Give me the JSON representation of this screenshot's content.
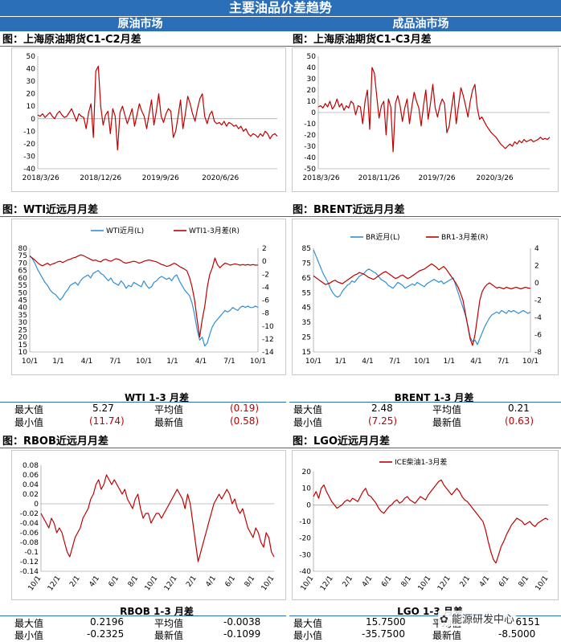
{
  "header": {
    "title": "主要油品价差趋势",
    "left_market": "原油市场",
    "right_market": "成品油市场"
  },
  "sections": {
    "sc_c1c2": "图：上海原油期货C1-C2月差",
    "sc_c1c3": "图：上海原油期货C1-C3月差",
    "wti": "图：WTI近远月月差",
    "brent": "图：BRENT近远月月差",
    "rbob": "图：RBOB近远月月差",
    "lgo": "图：LGO近远月月差"
  },
  "tables": {
    "wti": {
      "title": "WTI 1-3 月差",
      "max_label": "最大值",
      "max": "5.27",
      "avg_label": "平均值",
      "avg": "(0.19)",
      "min_label": "最小值",
      "min": "(11.74)",
      "latest_label": "最新值",
      "latest": "(0.58)"
    },
    "brent": {
      "title": "BRENT 1-3 月差",
      "max_label": "最大值",
      "max": "2.48",
      "avg_label": "平均值",
      "avg": "0.21",
      "min_label": "最小值",
      "min": "(7.25)",
      "latest_label": "最新值",
      "latest": "(0.63)"
    },
    "rbob": {
      "title": "RBOB 1-3 月差",
      "max_label": "最大值",
      "max": "0.2196",
      "avg_label": "平均值",
      "avg": "-0.0038",
      "min_label": "最小值",
      "min": "-0.2325",
      "latest_label": "最新值",
      "latest": "-0.1099"
    },
    "lgo": {
      "title": "LGO 1-3 月差",
      "max_label": "最大值",
      "max": "15.7500",
      "avg_label": "平均值",
      "avg": "0.6151",
      "min_label": "最小值",
      "min": "-35.7500",
      "latest_label": "最新值",
      "latest": "-8.5000"
    }
  },
  "watermark": "能源研发中心",
  "colors": {
    "band": "#2B6FB8",
    "series_red": "#C00000",
    "series_blue": "#2E8FD6"
  },
  "chart_data": [
    {
      "id": "sc_c1c2",
      "type": "line",
      "x_ticks": [
        "2018/3/26",
        "2018/12/26",
        "2019/9/26",
        "2020/6/26"
      ],
      "ylim": [
        -40,
        50
      ],
      "y_ticks": [
        50,
        40,
        30,
        20,
        10,
        0,
        -10,
        -20,
        -30,
        -40
      ],
      "series": [
        {
          "color": "#C00000",
          "values": [
            3,
            2,
            4,
            1,
            3,
            5,
            2,
            0,
            4,
            6,
            3,
            1,
            2,
            5,
            8,
            3,
            -2,
            4,
            2,
            1,
            -8,
            5,
            12,
            -15,
            38,
            42,
            10,
            -5,
            3,
            6,
            -12,
            8,
            2,
            -25,
            5,
            10,
            3,
            -4,
            2,
            8,
            -6,
            3,
            12,
            6,
            2,
            -8,
            4,
            15,
            -5,
            6,
            20,
            2,
            -3,
            4,
            8,
            6,
            -15,
            -10,
            2,
            15,
            -8,
            4,
            18,
            12,
            4,
            -2,
            8,
            16,
            20,
            2,
            -4,
            3,
            6,
            -2,
            -4,
            -3,
            -5,
            -2,
            -6,
            -3,
            -4,
            -6,
            -5,
            -8,
            -6,
            -10,
            -8,
            -12,
            -14,
            -12,
            -13,
            -15,
            -12,
            -14,
            -10,
            -12,
            -16,
            -13,
            -12,
            -14
          ]
        }
      ]
    },
    {
      "id": "sc_c1c3",
      "type": "line",
      "x_ticks": [
        "2018/3/26",
        "2018/11/26",
        "2019/7/26",
        "2020/3/26"
      ],
      "ylim": [
        -50,
        50
      ],
      "y_ticks": [
        50,
        40,
        30,
        20,
        10,
        0,
        -10,
        -20,
        -30,
        -40,
        -50
      ],
      "series": [
        {
          "color": "#C00000",
          "values": [
            5,
            6,
            4,
            8,
            5,
            10,
            3,
            6,
            12,
            5,
            8,
            2,
            6,
            4,
            10,
            8,
            -2,
            6,
            5,
            -10,
            10,
            20,
            -15,
            40,
            35,
            15,
            -5,
            6,
            10,
            -20,
            12,
            5,
            -35,
            8,
            15,
            6,
            -8,
            4,
            12,
            -10,
            5,
            18,
            10,
            4,
            -12,
            6,
            20,
            -6,
            8,
            25,
            4,
            -4,
            6,
            12,
            8,
            -18,
            -12,
            4,
            18,
            -10,
            6,
            22,
            15,
            6,
            -4,
            10,
            20,
            25,
            4,
            -6,
            -4,
            -8,
            -12,
            -15,
            -18,
            -20,
            -22,
            -25,
            -28,
            -30,
            -32,
            -30,
            -28,
            -30,
            -26,
            -28,
            -25,
            -27,
            -24,
            -26,
            -25,
            -24,
            -26,
            -25,
            -24,
            -22,
            -24,
            -23,
            -24,
            -22
          ]
        }
      ]
    },
    {
      "id": "wti",
      "type": "line",
      "x_ticks": [
        "10/1",
        "1/1",
        "4/1",
        "7/1",
        "10/1",
        "1/1",
        "4/1",
        "7/1",
        "10/1"
      ],
      "ylim": [
        10,
        80
      ],
      "y_ticks": [
        80,
        75,
        70,
        65,
        60,
        55,
        50,
        45,
        40,
        35,
        30,
        25,
        20,
        15,
        10
      ],
      "y2lim": [
        -14,
        2
      ],
      "y2_ticks": [
        2,
        0,
        -2,
        -4,
        -6,
        -8,
        -10,
        -12,
        -14
      ],
      "legend": [
        "WTI近月(L)",
        "WTI1-3月差(R)"
      ],
      "series": [
        {
          "name": "WTI近月(L)",
          "axis": "left",
          "color": "#2E8FD6",
          "values": [
            75,
            73,
            70,
            66,
            63,
            60,
            57,
            55,
            52,
            50,
            49,
            47,
            45,
            47,
            50,
            52,
            55,
            56,
            57,
            55,
            58,
            60,
            61,
            62,
            60,
            63,
            64,
            65,
            63,
            62,
            60,
            58,
            60,
            57,
            56,
            55,
            58,
            56,
            53,
            55,
            54,
            57,
            56,
            55,
            54,
            58,
            55,
            53,
            54,
            57,
            58,
            60,
            61,
            60,
            59,
            60,
            58,
            61,
            62,
            58,
            55,
            52,
            50,
            48,
            43,
            35,
            25,
            18,
            20,
            14,
            16,
            22,
            27,
            30,
            32,
            34,
            36,
            38,
            37,
            38,
            40,
            39,
            38,
            40,
            41,
            40,
            41,
            40,
            40,
            41,
            40
          ]
        },
        {
          "name": "WTI1-3月差(R)",
          "axis": "right",
          "color": "#C00000",
          "values": [
            0.8,
            0.5,
            0.2,
            -0.2,
            -0.5,
            -0.7,
            -0.5,
            -0.3,
            -0.6,
            -0.4,
            -0.3,
            -0.1,
            0,
            -0.2,
            0,
            0.2,
            0.3,
            0.5,
            0.6,
            0.8,
            1.0,
            0.9,
            0.7,
            0.5,
            0.3,
            0.1,
            0.2,
            0,
            -0.1,
            0.2,
            0.3,
            0.1,
            0,
            0.2,
            0.4,
            0.3,
            0.1,
            -0.2,
            -0.3,
            -0.2,
            -0.1,
            0,
            -0.1,
            -0.3,
            -0.2,
            0,
            0.1,
            0.2,
            0.1,
            0,
            -0.1,
            -0.3,
            -0.5,
            -0.6,
            -0.8,
            -0.7,
            -0.5,
            -0.3,
            -0.5,
            -0.8,
            -1.0,
            -1.2,
            -1.5,
            -2.5,
            -4,
            -6,
            -9,
            -11.7,
            -9,
            -7,
            -4,
            -2,
            -1,
            0.5,
            -0.5,
            -1.0,
            -0.6,
            -0.3,
            -0.4,
            -0.6,
            -0.5,
            -0.4,
            -0.5,
            -0.6,
            -0.5,
            -0.6,
            -0.5,
            -0.6,
            -0.5,
            -0.6,
            -0.58
          ]
        }
      ]
    },
    {
      "id": "brent",
      "type": "line",
      "x_ticks": [
        "10/1",
        "1/1",
        "4/1",
        "7/1",
        "10/1",
        "1/1",
        "4/1",
        "7/1",
        "10/1"
      ],
      "ylim": [
        15,
        85
      ],
      "y_ticks": [
        85,
        75,
        65,
        55,
        45,
        35,
        25,
        15
      ],
      "y2lim": [
        -8,
        4
      ],
      "y2_ticks": [
        4,
        2,
        0,
        -2,
        -4,
        -6,
        -8
      ],
      "legend": [
        "BR近月(L)",
        "BR1-3月差(R)"
      ],
      "series": [
        {
          "name": "BR近月(L)",
          "axis": "left",
          "color": "#2E8FD6",
          "values": [
            84,
            80,
            76,
            72,
            68,
            65,
            62,
            58,
            55,
            53,
            52,
            53,
            56,
            58,
            60,
            61,
            63,
            62,
            64,
            66,
            67,
            68,
            70,
            71,
            70,
            69,
            68,
            66,
            64,
            63,
            62,
            60,
            59,
            58,
            60,
            62,
            61,
            60,
            58,
            59,
            60,
            61,
            60,
            62,
            61,
            60,
            59,
            61,
            62,
            63,
            64,
            63,
            62,
            63,
            61,
            62,
            63,
            64,
            65,
            60,
            55,
            50,
            45,
            40,
            33,
            25,
            22,
            23,
            20,
            24,
            28,
            32,
            35,
            38,
            40,
            41,
            42,
            41,
            43,
            42,
            41,
            43,
            42,
            43,
            42,
            41,
            42,
            43,
            42,
            41,
            42
          ]
        },
        {
          "name": "BR1-3月差(R)",
          "axis": "right",
          "color": "#C00000",
          "values": [
            0.8,
            0.6,
            0.4,
            0.2,
            0,
            -0.2,
            -0.1,
            0,
            0.2,
            0.3,
            0.1,
            0,
            -0.1,
            0.1,
            0.3,
            0.5,
            0.7,
            0.9,
            1.0,
            1.2,
            1.1,
            1.0,
            0.8,
            0.6,
            0.5,
            0.4,
            0.6,
            0.8,
            1.0,
            1.2,
            1.3,
            1.1,
            0.9,
            0.7,
            0.5,
            0.6,
            0.8,
            0.9,
            0.7,
            0.5,
            0.6,
            0.8,
            1.0,
            1.2,
            1.4,
            1.5,
            1.6,
            1.8,
            2.0,
            2.2,
            2.0,
            1.8,
            1.5,
            1.7,
            1.9,
            1.6,
            1.2,
            0.8,
            0.4,
            0,
            -0.5,
            -1.2,
            -2,
            -3.5,
            -5,
            -6.5,
            -7.25,
            -6,
            -4,
            -2,
            -1,
            -0.5,
            -0.2,
            0,
            -0.2,
            -0.4,
            -0.6,
            -0.5,
            -0.6,
            -0.7,
            -0.5,
            -0.6,
            -0.7,
            -0.6,
            -0.5,
            -0.6,
            -0.7,
            -0.6,
            -0.5,
            -0.6,
            -0.63
          ]
        }
      ]
    },
    {
      "id": "rbob",
      "type": "line",
      "x_ticks": [
        "10/1",
        "12/1",
        "2/1",
        "4/1",
        "6/1",
        "8/1",
        "10/1",
        "12/1",
        "2/1",
        "4/1",
        "6/1",
        "8/1",
        "10/1"
      ],
      "ylim": [
        -0.14,
        0.08
      ],
      "y_ticks": [
        0.08,
        0.06,
        0.04,
        0.02,
        0,
        -0.02,
        -0.04,
        -0.06,
        -0.08,
        -0.1,
        -0.12,
        -0.14
      ],
      "series": [
        {
          "color": "#C00000",
          "values": [
            -0.02,
            -0.03,
            -0.04,
            -0.05,
            -0.03,
            -0.04,
            -0.06,
            -0.05,
            -0.06,
            -0.08,
            -0.1,
            -0.11,
            -0.09,
            -0.07,
            -0.06,
            -0.05,
            -0.03,
            -0.02,
            -0.01,
            0.01,
            0.02,
            0.04,
            0.05,
            0.03,
            0.04,
            0.06,
            0.05,
            0.04,
            0.05,
            0.04,
            0.03,
            0.02,
            0.03,
            0.01,
            0,
            -0.01,
            0.01,
            0.02,
            -0.01,
            -0.03,
            -0.02,
            -0.02,
            -0.04,
            -0.03,
            -0.02,
            -0.02,
            -0.03,
            -0.02,
            -0.01,
            0,
            0.01,
            0.02,
            0.03,
            0.02,
            0.01,
            -0.01,
            0.02,
            0,
            -0.04,
            -0.08,
            -0.12,
            -0.1,
            -0.08,
            -0.06,
            -0.04,
            -0.02,
            0,
            0.01,
            0.02,
            0.01,
            0.02,
            0.03,
            0.02,
            0,
            0.01,
            -0.01,
            -0.02,
            -0.01,
            -0.03,
            -0.05,
            -0.06,
            -0.07,
            -0.05,
            -0.06,
            -0.08,
            -0.09,
            -0.06,
            -0.07,
            -0.1,
            -0.11
          ]
        }
      ]
    },
    {
      "id": "lgo",
      "type": "line",
      "x_ticks": [
        "10/1",
        "12/1",
        "2/1",
        "4/1",
        "6/1",
        "8/1",
        "10/1",
        "12/1",
        "2/1",
        "4/1",
        "6/1",
        "8/1",
        "10/1"
      ],
      "ylim": [
        -40,
        20
      ],
      "y_ticks": [
        20,
        10,
        0,
        -10,
        -20,
        -30,
        -40
      ],
      "legend": [
        "ICE柴油1-3月差"
      ],
      "series": [
        {
          "name": "ICE柴油1-3月差",
          "color": "#C00000",
          "values": [
            5,
            8,
            4,
            10,
            12,
            8,
            5,
            2,
            0,
            -2,
            -1,
            0,
            2,
            3,
            2,
            4,
            3,
            2,
            5,
            8,
            10,
            6,
            5,
            3,
            1,
            -2,
            -4,
            -5,
            -3,
            -1,
            0,
            2,
            3,
            1,
            2,
            4,
            5,
            3,
            2,
            1,
            3,
            5,
            4,
            3,
            6,
            8,
            10,
            12,
            14,
            15,
            12,
            10,
            8,
            6,
            8,
            10,
            8,
            5,
            3,
            2,
            0,
            -2,
            -4,
            -6,
            -8,
            -10,
            -15,
            -22,
            -28,
            -33,
            -35,
            -30,
            -25,
            -22,
            -18,
            -15,
            -12,
            -10,
            -8,
            -9,
            -10,
            -12,
            -11,
            -10,
            -12,
            -13,
            -11,
            -10,
            -9,
            -8,
            -9
          ]
        }
      ]
    }
  ]
}
